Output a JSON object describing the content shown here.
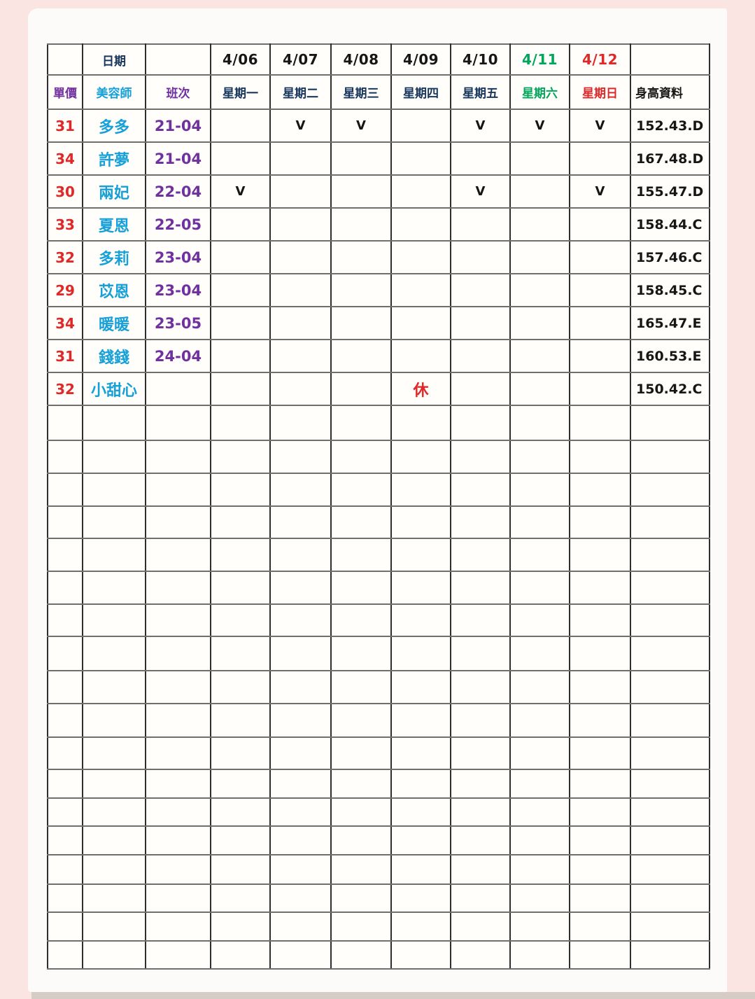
{
  "colors": {
    "navy": "#17365d",
    "purple": "#7030a0",
    "cyan": "#17a0d8",
    "red": "#df2828",
    "green": "#00a65a",
    "black": "#161616"
  },
  "table": {
    "dates_row": [
      "",
      "日期",
      "",
      "4/06",
      "4/07",
      "4/08",
      "4/09",
      "4/10",
      "4/11",
      "4/12",
      ""
    ],
    "dates_colors": [
      "",
      "navy",
      "",
      "black",
      "black",
      "black",
      "black",
      "black",
      "green",
      "red",
      ""
    ],
    "header_row": [
      "單價",
      "美容師",
      "班次",
      "星期一",
      "星期二",
      "星期三",
      "星期四",
      "星期五",
      "星期六",
      "星期日",
      "身高資料"
    ],
    "header_colors": [
      "purple",
      "cyan",
      "purple",
      "navy",
      "navy",
      "navy",
      "navy",
      "navy",
      "green",
      "red",
      "black"
    ],
    "check_mark": "V",
    "rest_mark": "休",
    "staff_rows": [
      {
        "price": "31",
        "name": "多多",
        "shift": "21-04",
        "days": [
          "",
          "V",
          "V",
          "",
          "V",
          "V",
          "V"
        ],
        "height": "152.43.D"
      },
      {
        "price": "34",
        "name": "許夢",
        "shift": "21-04",
        "days": [
          "",
          "",
          "",
          "",
          "",
          "",
          ""
        ],
        "height": "167.48.D"
      },
      {
        "price": "30",
        "name": "兩妃",
        "shift": "22-04",
        "days": [
          "V",
          "",
          "",
          "",
          "V",
          "",
          "V"
        ],
        "height": "155.47.D"
      },
      {
        "price": "33",
        "name": "夏恩",
        "shift": "22-05",
        "days": [
          "",
          "",
          "",
          "",
          "",
          "",
          ""
        ],
        "height": "158.44.C"
      },
      {
        "price": "32",
        "name": "多莉",
        "shift": "23-04",
        "days": [
          "",
          "",
          "",
          "",
          "",
          "",
          ""
        ],
        "height": "157.46.C"
      },
      {
        "price": "29",
        "name": "苡恩",
        "shift": "23-04",
        "days": [
          "",
          "",
          "",
          "",
          "",
          "",
          ""
        ],
        "height": "158.45.C"
      },
      {
        "price": "34",
        "name": "暖暖",
        "shift": "23-05",
        "days": [
          "",
          "",
          "",
          "",
          "",
          "",
          ""
        ],
        "height": "165.47.E"
      },
      {
        "price": "31",
        "name": "錢錢",
        "shift": "24-04",
        "days": [
          "",
          "",
          "",
          "",
          "",
          "",
          ""
        ],
        "height": "160.53.E"
      },
      {
        "price": "32",
        "name": "小甜心",
        "shift": "",
        "days": [
          "",
          "",
          "",
          "休",
          "",
          "",
          ""
        ],
        "height": "150.42.C"
      }
    ],
    "empty_row_count": 18
  }
}
